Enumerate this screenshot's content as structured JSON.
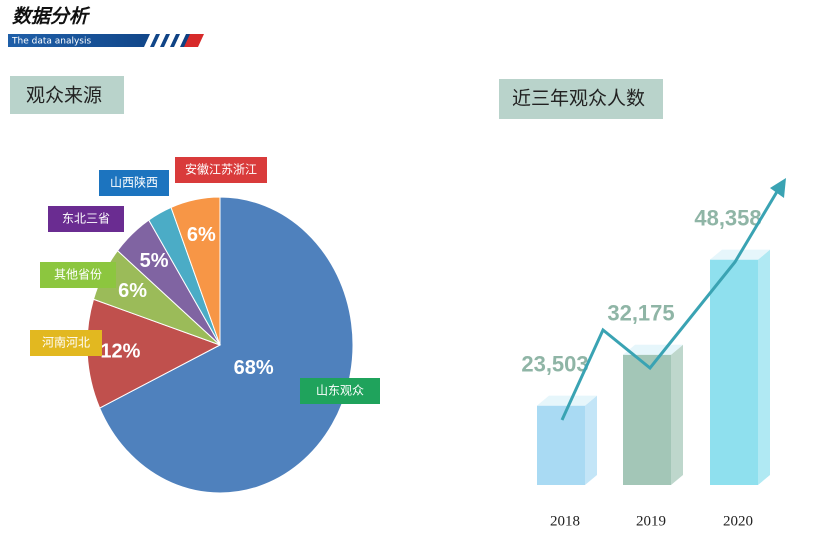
{
  "header": {
    "title": "数据分析",
    "subtitle": "The data analysis"
  },
  "chart_data": [
    {
      "type": "pie",
      "title": "观众来源",
      "categories": [
        "山东观众",
        "河南河北",
        "其他省份",
        "东北三省",
        "山西陕西",
        "安徽江苏浙江"
      ],
      "values": [
        68,
        12,
        6,
        5,
        3,
        6
      ],
      "value_labels": [
        "68%",
        "12%",
        "6%",
        "5%",
        null,
        "6%"
      ],
      "colors": [
        "#4f81bd",
        "#c0504d",
        "#9bbb59",
        "#8064a2",
        "#4bacc6",
        "#f79646"
      ]
    },
    {
      "type": "bar",
      "title": "近三年观众人数",
      "categories": [
        "2018",
        "2019",
        "2020"
      ],
      "values": [
        23503,
        32175,
        48358
      ],
      "value_labels": [
        "23,503",
        "32,175",
        "48,358"
      ],
      "colors": [
        "#a9daf3",
        "#a3c6b7",
        "#8fe0ee"
      ],
      "ylim": [
        10000,
        50000
      ]
    }
  ]
}
